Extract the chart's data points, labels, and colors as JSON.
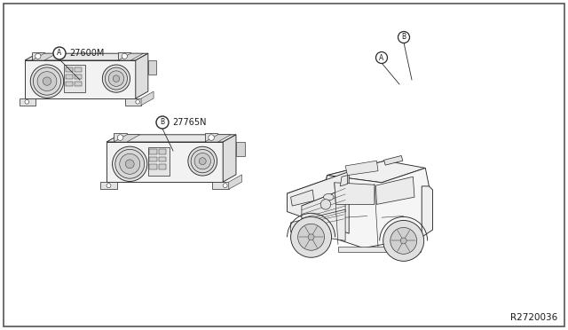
{
  "background_color": "#ffffff",
  "border_color": "#404040",
  "fig_width": 6.4,
  "fig_height": 3.72,
  "dpi": 100,
  "part_number_A": "27600M",
  "part_number_B": "27765N",
  "diagram_ref": "R2720036",
  "text_color": "#1a1a1a",
  "line_color": "#2a2a2a",
  "border_width": 1.2,
  "lw": 0.65
}
